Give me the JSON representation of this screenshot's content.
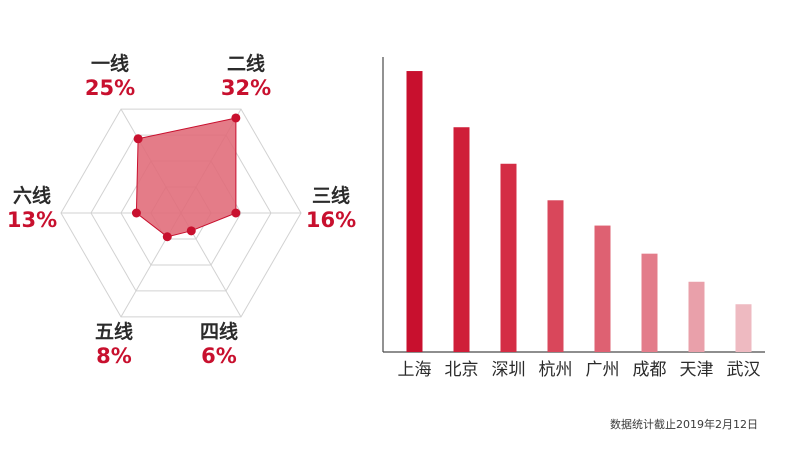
{
  "chart_data": [
    {
      "type": "radar",
      "categories": [
        "一线",
        "二线",
        "三线",
        "四线",
        "五线",
        "六线"
      ],
      "values": [
        25,
        32,
        16,
        6,
        8,
        13
      ],
      "value_labels": [
        "25%",
        "32%",
        "16%",
        "6%",
        "8%",
        "13%"
      ],
      "rmax": 35,
      "rings": 4,
      "color": "#e06a78",
      "point_color": "#c8102e"
    },
    {
      "type": "bar",
      "categories": [
        "上海",
        "北京",
        "深圳",
        "杭州",
        "广州",
        "成都",
        "天津",
        "武汉"
      ],
      "values": [
        100,
        80,
        67,
        54,
        45,
        35,
        25,
        17
      ],
      "ylim": [
        0,
        105
      ],
      "colors": [
        "#c8102e",
        "#cf1e38",
        "#d42d45",
        "#d9475b",
        "#de6172",
        "#e37c8a",
        "#e9a0aa",
        "#eebac1"
      ]
    }
  ],
  "footnote": "数据统计截止2019年2月12日"
}
